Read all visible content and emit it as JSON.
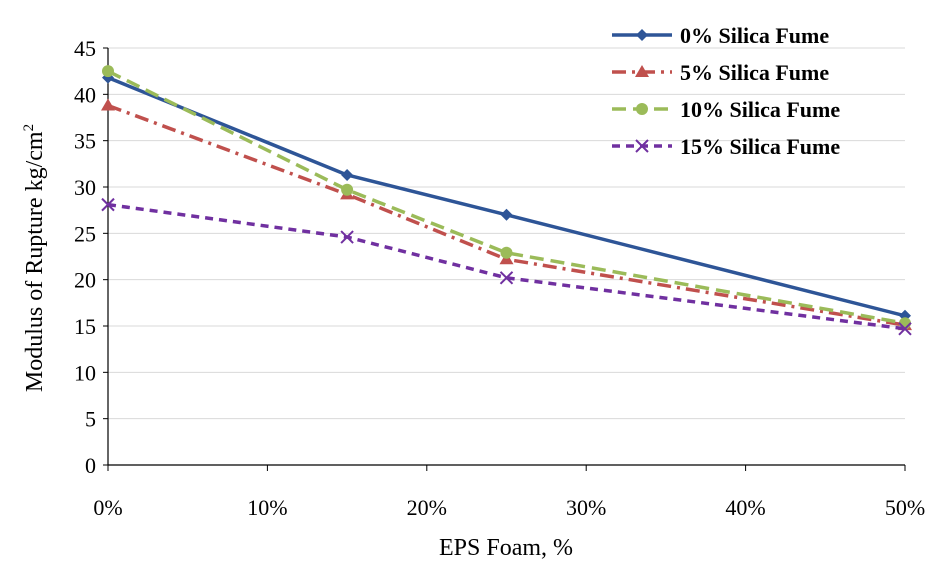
{
  "chart_data": {
    "type": "line",
    "xlabel": "EPS Foam, %",
    "ylabel": "Modulus of Rupture kg/cm",
    "ylabel_superscript": "2",
    "x": [
      0,
      15,
      25,
      50
    ],
    "x_ticks": [
      0,
      10,
      20,
      30,
      40,
      50
    ],
    "x_tick_labels": [
      "0%",
      "10%",
      "20%",
      "30%",
      "40%",
      "50%"
    ],
    "xlim": [
      0,
      50
    ],
    "ylim": [
      0,
      45
    ],
    "y_ticks": [
      0,
      5,
      10,
      15,
      20,
      25,
      30,
      35,
      40,
      45
    ],
    "y_tick_labels": [
      "0",
      "5",
      "10",
      "15",
      "20",
      "25",
      "30",
      "35",
      "40",
      "45"
    ],
    "grid": "horizontal",
    "legend_position": "top-right",
    "series": [
      {
        "name": "0% Silica Fume",
        "values": [
          41.8,
          31.3,
          27.0,
          16.1
        ],
        "color": "#2E5597",
        "marker": "diamond",
        "dash": "solid"
      },
      {
        "name": "5% Silica Fume",
        "values": [
          38.8,
          29.2,
          22.2,
          15.1
        ],
        "color": "#C0504D",
        "marker": "triangle",
        "dash": "dashdot"
      },
      {
        "name": "10% Silica Fume",
        "values": [
          42.5,
          29.7,
          22.9,
          15.3
        ],
        "color": "#9BBB59",
        "marker": "circle",
        "dash": "dash"
      },
      {
        "name": "15% Silica Fume",
        "values": [
          28.1,
          24.6,
          20.2,
          14.7
        ],
        "color": "#7030A0",
        "marker": "x",
        "dash": "shortdash"
      }
    ]
  }
}
